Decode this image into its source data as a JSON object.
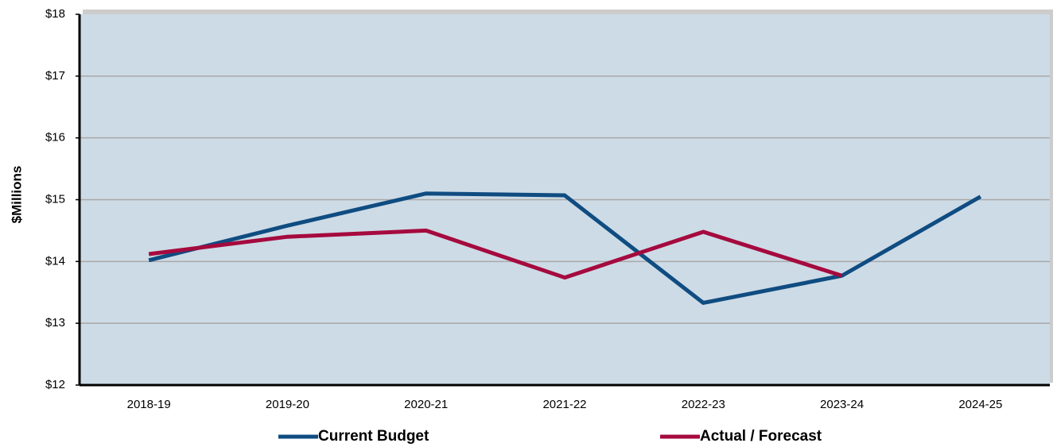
{
  "chart_data": {
    "type": "line",
    "y_label": "$Millions",
    "categories": [
      "2018-19",
      "2019-20",
      "2020-21",
      "2021-22",
      "2022-23",
      "2023-24",
      "2024-25"
    ],
    "series": [
      {
        "name": "Current Budget",
        "color": "#0f4c81",
        "values": [
          14.02,
          14.58,
          15.1,
          15.07,
          13.33,
          13.77,
          15.05
        ]
      },
      {
        "name": "Actual / Forecast",
        "color": "#a50a3e",
        "values": [
          14.12,
          14.4,
          14.5,
          13.74,
          14.48,
          13.77,
          null
        ]
      }
    ],
    "ylim": [
      12,
      18
    ],
    "yticks": [
      {
        "value": 12,
        "label": "$12"
      },
      {
        "value": 13,
        "label": "$13"
      },
      {
        "value": 14,
        "label": "$14"
      },
      {
        "value": 15,
        "label": "$15"
      },
      {
        "value": 16,
        "label": "$16"
      },
      {
        "value": 17,
        "label": "$17"
      },
      {
        "value": 18,
        "label": "$18"
      }
    ],
    "grid": true,
    "legend": "bottom"
  }
}
